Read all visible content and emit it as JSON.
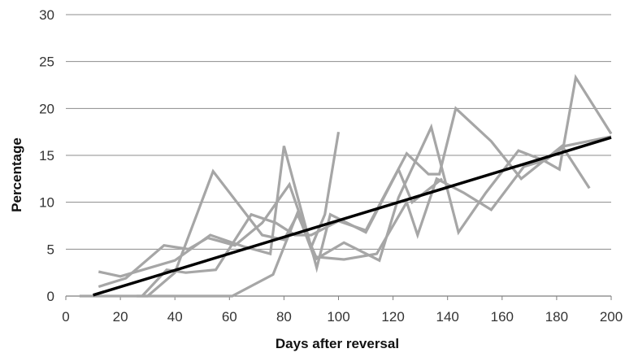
{
  "chart_data": {
    "type": "line",
    "title": "",
    "xlabel": "Days after reversal",
    "ylabel": "Percentage",
    "xlim": [
      0,
      200
    ],
    "ylim": [
      0,
      30
    ],
    "x_ticks": [
      0,
      20,
      40,
      60,
      80,
      100,
      120,
      140,
      160,
      180,
      200
    ],
    "y_ticks": [
      0,
      5,
      10,
      15,
      20,
      25,
      30
    ],
    "grid": "horizontal",
    "legend": "none",
    "series_color": "#a6a6a6",
    "trend_color": "#000000",
    "series": [
      {
        "points": [
          [
            12,
            2.6
          ],
          [
            20,
            2.1
          ],
          [
            40,
            3.8
          ],
          [
            53,
            6.5
          ],
          [
            65,
            5.3
          ],
          [
            75,
            4.5
          ],
          [
            80,
            16.0
          ],
          [
            92,
            3.0
          ],
          [
            97,
            8.7
          ],
          [
            110,
            6.8
          ],
          [
            122,
            13.5
          ],
          [
            127,
            10.0
          ],
          [
            138,
            12.5
          ]
        ]
      },
      {
        "points": [
          [
            12,
            1.0
          ],
          [
            22,
            1.9
          ],
          [
            36,
            5.4
          ],
          [
            45,
            5.0
          ],
          [
            52,
            6.2
          ],
          [
            62,
            5.4
          ],
          [
            72,
            7.8
          ],
          [
            82,
            11.9
          ],
          [
            90,
            5.2
          ],
          [
            95,
            8.7
          ],
          [
            100,
            17.5
          ]
        ]
      },
      {
        "points": [
          [
            26,
            0.0
          ],
          [
            30,
            0.0
          ],
          [
            40,
            2.5
          ],
          [
            54,
            13.3
          ],
          [
            72,
            6.5
          ],
          [
            80,
            6.0
          ],
          [
            85,
            8.7
          ],
          [
            92,
            4.0
          ],
          [
            102,
            5.7
          ],
          [
            115,
            3.8
          ],
          [
            122,
            10.5
          ],
          [
            134,
            18.0
          ],
          [
            144,
            6.8
          ],
          [
            154,
            11.0
          ],
          [
            166,
            15.5
          ],
          [
            175,
            14.5
          ],
          [
            181,
            13.5
          ],
          [
            187,
            23.3
          ],
          [
            200,
            17.3
          ]
        ]
      },
      {
        "points": [
          [
            28,
            0.0
          ],
          [
            37,
            2.8
          ],
          [
            44,
            2.5
          ],
          [
            55,
            2.8
          ],
          [
            68,
            8.7
          ],
          [
            77,
            7.8
          ],
          [
            84,
            6.5
          ],
          [
            90,
            6.5
          ],
          [
            100,
            8.0
          ],
          [
            110,
            7.0
          ],
          [
            125,
            15.2
          ],
          [
            133,
            13.0
          ],
          [
            137,
            13.0
          ],
          [
            143,
            20.0
          ],
          [
            156,
            16.5
          ],
          [
            167,
            12.5
          ],
          [
            182,
            16.0
          ],
          [
            192,
            11.5
          ]
        ]
      },
      {
        "points": [
          [
            5,
            0.0
          ],
          [
            20,
            0.0
          ],
          [
            40,
            0.0
          ],
          [
            61,
            0.0
          ],
          [
            76,
            2.3
          ],
          [
            85,
            8.9
          ],
          [
            91,
            4.2
          ],
          [
            102,
            3.9
          ],
          [
            114,
            4.5
          ],
          [
            125,
            10.0
          ],
          [
            129,
            6.5
          ],
          [
            136,
            12.5
          ],
          [
            146,
            11.0
          ],
          [
            156,
            9.2
          ],
          [
            168,
            13.8
          ],
          [
            176,
            14.5
          ],
          [
            183,
            16.0
          ],
          [
            200,
            17.0
          ]
        ]
      }
    ],
    "trend": {
      "x": [
        10,
        200
      ],
      "y": [
        0.1,
        16.9
      ]
    }
  }
}
